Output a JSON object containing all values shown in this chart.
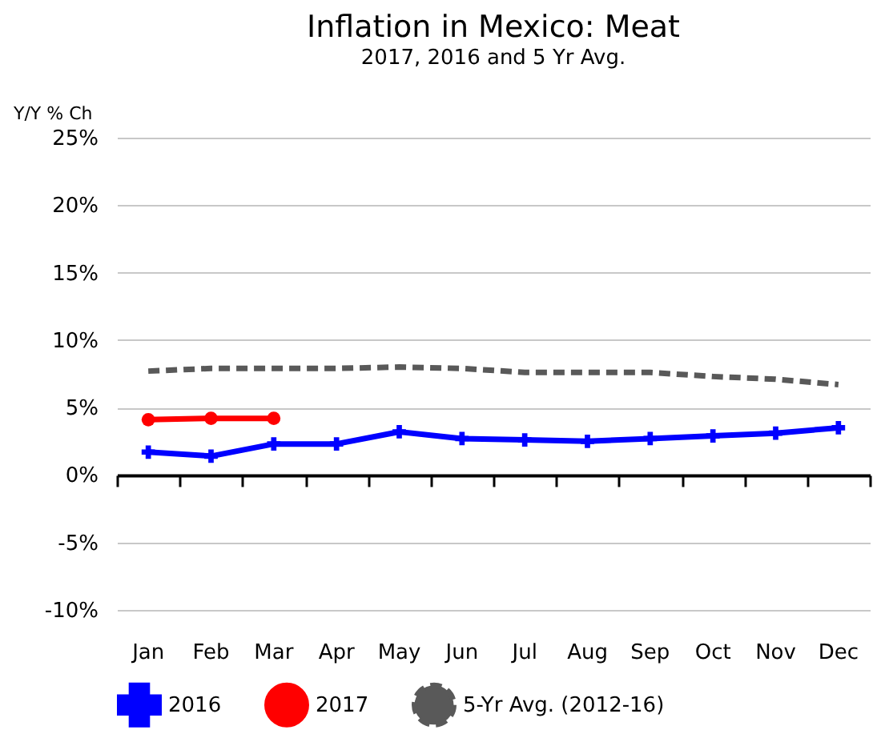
{
  "chart_data": {
    "type": "line",
    "title": "Inflation in Mexico: Meat",
    "subtitle": "2017, 2016 and 5 Yr Avg.",
    "ylabel": "Y/Y % Ch",
    "categories": [
      "Jan",
      "Feb",
      "Mar",
      "Apr",
      "May",
      "Jun",
      "Jul",
      "Aug",
      "Sep",
      "Oct",
      "Nov",
      "Dec"
    ],
    "series": [
      {
        "name": "2016",
        "color": "#0000ff",
        "marker": "cross",
        "line_style": "solid",
        "values": [
          1.7,
          1.4,
          2.3,
          2.3,
          3.2,
          2.7,
          2.6,
          2.5,
          2.7,
          2.9,
          3.1,
          3.5
        ]
      },
      {
        "name": "2017",
        "color": "#ff0000",
        "marker": "circle",
        "line_style": "solid",
        "values": [
          4.1,
          4.2,
          4.2,
          null,
          null,
          null,
          null,
          null,
          null,
          null,
          null,
          null
        ]
      },
      {
        "name": "5-Yr Avg. (2012-16)",
        "color": "#595959",
        "marker": "none",
        "line_style": "dashed",
        "values": [
          7.7,
          7.9,
          7.9,
          7.9,
          8.0,
          7.9,
          7.6,
          7.6,
          7.6,
          7.3,
          7.1,
          6.7
        ]
      }
    ],
    "ylim": [
      -10,
      25
    ],
    "yticks": [
      {
        "value": -10,
        "label": "-10%"
      },
      {
        "value": -5,
        "label": "-5%"
      },
      {
        "value": 0,
        "label": "0%"
      },
      {
        "value": 5,
        "label": "5%"
      },
      {
        "value": 10,
        "label": "10%"
      },
      {
        "value": 15,
        "label": "15%"
      },
      {
        "value": 20,
        "label": "20%"
      },
      {
        "value": 25,
        "label": "25%"
      }
    ],
    "grid": "y",
    "legend": "bottom"
  }
}
